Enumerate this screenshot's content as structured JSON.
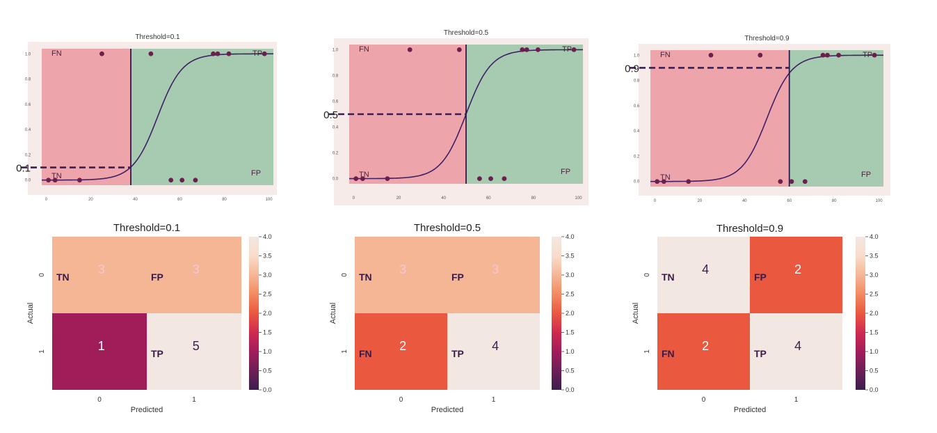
{
  "chart_data": [
    {
      "type": "scatter",
      "title": "Threshold=0.1",
      "threshold": 0.1,
      "threshold_label": "0.1",
      "x_threshold": 38,
      "xlim": [
        -2,
        102
      ],
      "ylim": [
        -0.04,
        1.04
      ],
      "xticks": [
        "0",
        "20",
        "40",
        "60",
        "80",
        "100"
      ],
      "yticks": [
        "0.0",
        "0.2",
        "0.4",
        "0.6",
        "0.8",
        "1.0"
      ],
      "region_labels": {
        "fn": "FN",
        "tp": "TP",
        "tn": "TN",
        "fp": "FP"
      },
      "points_pos_x": [
        25,
        47,
        75,
        77,
        82,
        98
      ],
      "points_neg_x": [
        1,
        4,
        15,
        56,
        61,
        67
      ],
      "sigmoid": {
        "midpoint": 50,
        "steepness": 0.18
      },
      "colors": {
        "red_region": "#eda4aa",
        "green_region": "#a6cbb0",
        "curve": "#3f1f66",
        "point": "#6b1f4e",
        "background": "#f6ebe8"
      }
    },
    {
      "type": "scatter",
      "title": "Threshold=0.5",
      "threshold": 0.5,
      "threshold_label": "0.5",
      "x_threshold": 50,
      "xlim": [
        -2,
        102
      ],
      "ylim": [
        -0.04,
        1.04
      ],
      "xticks": [
        "0",
        "20",
        "40",
        "60",
        "80",
        "100"
      ],
      "yticks": [
        "0.0",
        "0.2",
        "0.4",
        "0.6",
        "0.8",
        "1.0"
      ],
      "region_labels": {
        "fn": "FN",
        "tp": "TP",
        "tn": "TN",
        "fp": "FP"
      },
      "points_pos_x": [
        25,
        47,
        75,
        77,
        82,
        98
      ],
      "points_neg_x": [
        1,
        4,
        15,
        56,
        61,
        67
      ],
      "sigmoid": {
        "midpoint": 50,
        "steepness": 0.18
      },
      "colors": {
        "red_region": "#eda4aa",
        "green_region": "#a6cbb0",
        "curve": "#3f1f66",
        "point": "#6b1f4e",
        "background": "#f6ebe8"
      }
    },
    {
      "type": "scatter",
      "title": "Threshold=0.9",
      "threshold": 0.9,
      "threshold_label": "0.9",
      "x_threshold": 60,
      "xlim": [
        -2,
        102
      ],
      "ylim": [
        -0.04,
        1.04
      ],
      "xticks": [
        "0",
        "20",
        "40",
        "60",
        "80",
        "100"
      ],
      "yticks": [
        "0.0",
        "0.2",
        "0.4",
        "0.6",
        "0.8",
        "1.0"
      ],
      "region_labels": {
        "fn": "FN",
        "tp": "TP",
        "tn": "TN",
        "fp": "FP"
      },
      "points_pos_x": [
        25,
        47,
        75,
        77,
        82,
        98
      ],
      "points_neg_x": [
        1,
        4,
        15,
        56,
        61,
        67
      ],
      "sigmoid": {
        "midpoint": 50,
        "steepness": 0.18
      },
      "colors": {
        "red_region": "#eda4aa",
        "green_region": "#a6cbb0",
        "curve": "#3f1f66",
        "point": "#6b1f4e",
        "background": "#f6ebe8"
      }
    },
    {
      "type": "heatmap",
      "title": "Threshold=0.1",
      "xlabel": "Predicted",
      "ylabel": "Actual",
      "xticklabels": [
        "0",
        "1"
      ],
      "yticklabels": [
        "0",
        "1"
      ],
      "values": [
        [
          3,
          3
        ],
        [
          1,
          5
        ]
      ],
      "cell_labels": [
        [
          "TN",
          "FP"
        ],
        [
          "",
          "TP"
        ]
      ],
      "colorbar": {
        "min": 0.0,
        "max": 4.0,
        "ticks": [
          "0.0",
          "0.5",
          "1.0",
          "1.5",
          "2.0",
          "2.5",
          "3.0",
          "3.5",
          "4.0"
        ]
      }
    },
    {
      "type": "heatmap",
      "title": "Threshold=0.5",
      "xlabel": "Predicted",
      "ylabel": "Actual",
      "xticklabels": [
        "0",
        "1"
      ],
      "yticklabels": [
        "0",
        "1"
      ],
      "values": [
        [
          3,
          3
        ],
        [
          2,
          4
        ]
      ],
      "cell_labels": [
        [
          "TN",
          "FP"
        ],
        [
          "FN",
          "TP"
        ]
      ],
      "colorbar": {
        "min": 0.0,
        "max": 4.0,
        "ticks": [
          "0.0",
          "0.5",
          "1.0",
          "1.5",
          "2.0",
          "2.5",
          "3.0",
          "3.5",
          "4.0"
        ]
      }
    },
    {
      "type": "heatmap",
      "title": "Threshold=0.9",
      "xlabel": "Predicted",
      "ylabel": "Actual",
      "xticklabels": [
        "0",
        "1"
      ],
      "yticklabels": [
        "0",
        "1"
      ],
      "values": [
        [
          4,
          2
        ],
        [
          2,
          4
        ]
      ],
      "cell_labels": [
        [
          "TN",
          "FP"
        ],
        [
          "FN",
          "TP"
        ]
      ],
      "colorbar": {
        "min": 0.0,
        "max": 4.0,
        "ticks": [
          "0.0",
          "0.5",
          "1.0",
          "1.5",
          "2.0",
          "2.5",
          "3.0",
          "3.5",
          "4.0"
        ]
      }
    }
  ],
  "colormap": [
    "#3b1f4e",
    "#6d1f57",
    "#a11d5a",
    "#cf2a4f",
    "#ea5840",
    "#f28a62",
    "#f5b696",
    "#f9dccb",
    "#f3e7e2"
  ]
}
